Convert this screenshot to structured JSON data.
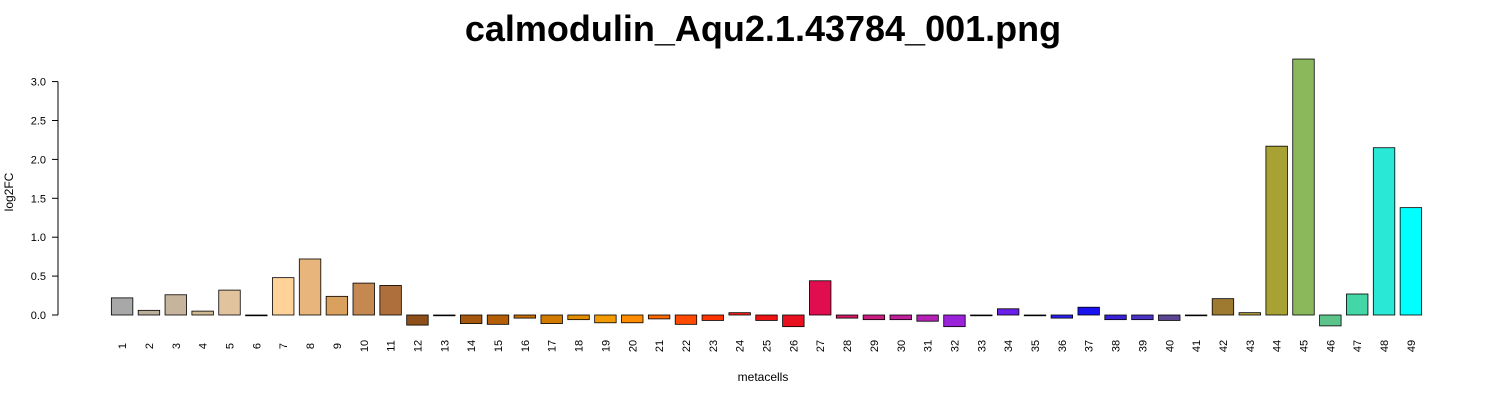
{
  "chart_data": {
    "type": "bar",
    "title": "calmodulin_Aqu2.1.43784_001.png",
    "xlabel": "metacells",
    "ylabel": "log2FC",
    "ylim": [
      -0.15,
      3.3
    ],
    "yticks": [
      "0.0",
      "0.5",
      "1.0",
      "1.5",
      "2.0",
      "2.5",
      "3.0"
    ],
    "grid": false,
    "categories": [
      "1",
      "2",
      "3",
      "4",
      "5",
      "6",
      "7",
      "8",
      "9",
      "10",
      "11",
      "12",
      "13",
      "14",
      "15",
      "16",
      "17",
      "18",
      "19",
      "20",
      "21",
      "22",
      "23",
      "24",
      "25",
      "26",
      "27",
      "28",
      "29",
      "30",
      "31",
      "32",
      "33",
      "34",
      "35",
      "36",
      "37",
      "38",
      "39",
      "40",
      "41",
      "42",
      "43",
      "44",
      "45",
      "46",
      "47",
      "48",
      "49"
    ],
    "values": [
      0.22,
      0.06,
      0.26,
      0.05,
      0.32,
      0.0,
      0.48,
      0.72,
      0.24,
      0.41,
      0.38,
      -0.13,
      0.0,
      -0.11,
      -0.12,
      -0.04,
      -0.11,
      -0.06,
      -0.1,
      -0.1,
      -0.05,
      -0.12,
      -0.07,
      0.03,
      -0.07,
      -0.15,
      0.44,
      -0.04,
      -0.06,
      -0.06,
      -0.08,
      -0.15,
      0.0,
      0.08,
      0.0,
      -0.04,
      0.1,
      -0.06,
      -0.06,
      -0.07,
      0.0,
      0.21,
      0.03,
      2.17,
      3.29,
      -0.14,
      0.27,
      2.15,
      1.38
    ],
    "colors": [
      "#A8A8A8",
      "#BBAE9C",
      "#C7B49C",
      "#CFB993",
      "#E1C39D",
      "#F2CFA6",
      "#FFD29A",
      "#E8B57D",
      "#D9A05E",
      "#C48850",
      "#AE6F3C",
      "#8E4F18",
      "#9B5412",
      "#A5570D",
      "#B45E05",
      "#C66C00",
      "#D27A00",
      "#E28C00",
      "#F29B00",
      "#FF8C00",
      "#FF6A00",
      "#FF4A00",
      "#FF3300",
      "#F7211A",
      "#EE1313",
      "#E8101F",
      "#E00E4E",
      "#D41863",
      "#CB1C7F",
      "#BF1F9A",
      "#B322B5",
      "#9A22D8",
      "#7A1DF0",
      "#6A1FEA",
      "#5A22F0",
      "#2A1FF5",
      "#1A12F0",
      "#3A22D8",
      "#4A33C8",
      "#5B4490",
      "#5C4B6B",
      "#9E7A30",
      "#B3A03A",
      "#A8A235",
      "#8AB85A",
      "#5CC48A",
      "#45D6A8",
      "#2AE8D6",
      "#00FFFF"
    ]
  }
}
